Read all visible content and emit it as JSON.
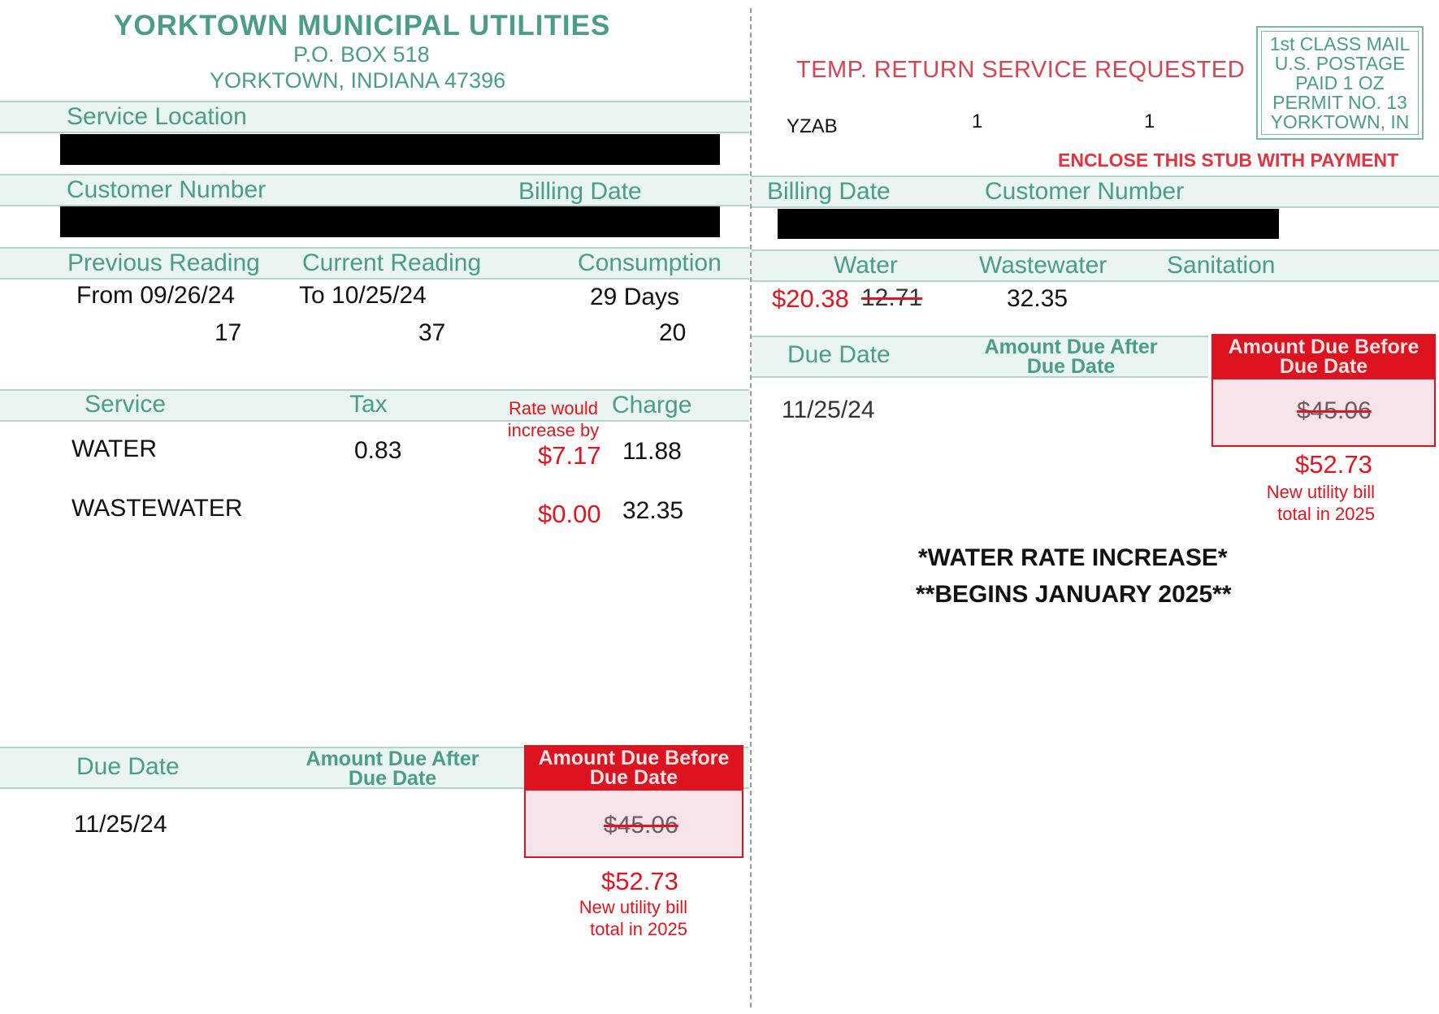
{
  "header": {
    "utility_name": "YORKTOWN MUNICIPAL UTILITIES",
    "po_box": "P.O. BOX 518",
    "city_state_zip": "YORKTOWN, INDIANA 47396"
  },
  "left": {
    "service_location_label": "Service Location",
    "customer_number_label": "Customer Number",
    "billing_date_label": "Billing Date",
    "readings_header": {
      "previous": "Previous Reading",
      "current": "Current Reading",
      "consumption": "Consumption"
    },
    "readings": {
      "from": "From 09/26/24",
      "to": "To 10/25/24",
      "days": "29 Days",
      "previous_value": "17",
      "current_value": "37",
      "consumption_value": "20"
    },
    "services_header": {
      "service": "Service",
      "tax": "Tax",
      "charge": "Charge"
    },
    "services": [
      {
        "name": "WATER",
        "tax": "0.83",
        "charge": "11.88"
      },
      {
        "name": "WASTEWATER",
        "tax": "",
        "charge": "32.35"
      }
    ],
    "annotation": {
      "rate_note_line1": "Rate would",
      "rate_note_line2": "increase by",
      "water_increase": "$7.17",
      "wastewater_increase": "$0.00"
    },
    "due": {
      "due_date_label": "Due Date",
      "after_label_line1": "Amount Due After",
      "after_label_line2": "Due Date",
      "before_label_line1": "Amount Due Before",
      "before_label_line2": "Due Date",
      "due_date": "11/25/24",
      "amount_before": "$45.06",
      "new_total": "$52.73",
      "new_total_note_line1": "New utility bill",
      "new_total_note_line2": "total in 2025"
    }
  },
  "right": {
    "temp_return": "TEMP. RETURN SERVICE REQUESTED",
    "postage": {
      "line1": "1st CLASS MAIL",
      "line2": "U.S. POSTAGE",
      "line3": "PAID 1 OZ",
      "line4": "PERMIT NO. 13",
      "line5": "YORKTOWN, IN"
    },
    "route": {
      "code": "YZAB",
      "n1": "1",
      "n2": "1"
    },
    "enclose": "ENCLOSE THIS STUB WITH PAYMENT",
    "billing_date_label": "Billing Date",
    "customer_number_label": "Customer Number",
    "charges_header": {
      "water": "Water",
      "wastewater": "Wastewater",
      "sanitation": "Sanitation"
    },
    "water_new": "$20.38",
    "water_old": "12.71",
    "wastewater": "32.35",
    "due": {
      "due_date_label": "Due Date",
      "after_label_line1": "Amount Due After",
      "after_label_line2": "Due Date",
      "before_label_line1": "Amount Due Before",
      "before_label_line2": "Due Date",
      "due_date": "11/25/24",
      "amount_before": "$45.06",
      "new_total": "$52.73",
      "new_total_note_line1": "New utility bill",
      "new_total_note_line2": "total in 2025"
    },
    "notice_line1": "*WATER RATE INCREASE*",
    "notice_line2": "**BEGINS JANUARY 2025**"
  },
  "colors": {
    "green_text": "#4a9e86",
    "green_band": "#eaf4f1",
    "red_annotation": "#e4141e",
    "red_box": "#de1320"
  }
}
